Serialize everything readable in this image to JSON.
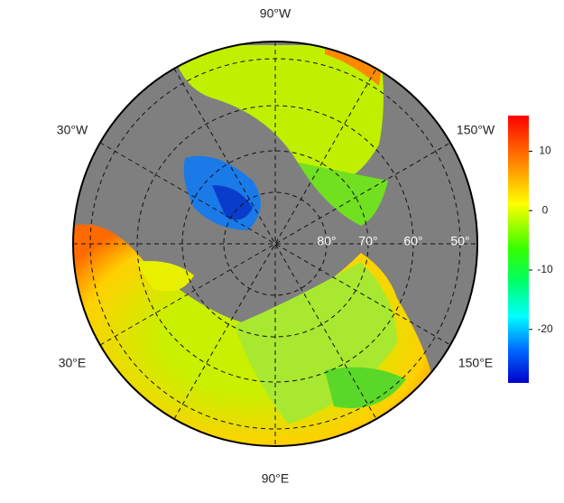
{
  "map": {
    "lon_labels": [
      "90°W",
      "30°W",
      "150°W",
      "30°E",
      "150°E",
      "90°E"
    ],
    "lat_labels": [
      "80°",
      "70°",
      "60°",
      "50°"
    ]
  },
  "colorbar": {
    "lim": [
      -29,
      16
    ],
    "ticks": [
      10,
      0,
      -10,
      -20
    ]
  }
}
